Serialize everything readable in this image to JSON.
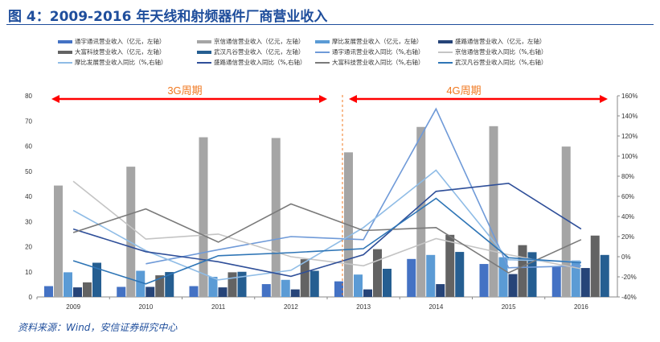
{
  "title": "图 4：2009-2016 年天线和射频器件厂商营业收入",
  "source": "资料来源：Wind，安信证券研究中心",
  "annotations": {
    "period_3g": "3G周期",
    "period_4g": "4G周期",
    "arrow_color": "#ff0000",
    "text_color": "#f07820"
  },
  "chart_data": {
    "type": "bar+line",
    "title": "2009-2016 年天线和射频器件厂商营业收入",
    "categories": [
      "2009",
      "2010",
      "2011",
      "2012",
      "2013",
      "2014",
      "2015",
      "2016"
    ],
    "left_axis": {
      "ylim": [
        0,
        80
      ],
      "ticks": [
        "0",
        "10",
        "20",
        "30",
        "40",
        "50",
        "60",
        "70",
        "80"
      ]
    },
    "right_axis": {
      "ylim": [
        -40,
        160
      ],
      "ticks": [
        "-40%",
        "-20%",
        "0%",
        "20%",
        "40%",
        "60%",
        "80%",
        "100%",
        "120%",
        "140%",
        "160%"
      ]
    },
    "grid": false,
    "legend_position": "top",
    "bar_series": [
      {
        "name": "通宇通讯营业收入（亿元，左轴）",
        "color": "#4472c4",
        "values": [
          4.3,
          4.0,
          4.3,
          5.1,
          6.2,
          15.1,
          13.1,
          12.3
        ]
      },
      {
        "name": "京信通信营业收入（亿元，左轴）",
        "color": "#a5a5a5",
        "values": [
          44.3,
          51.8,
          63.5,
          63.2,
          57.5,
          67.6,
          67.9,
          59.8
        ]
      },
      {
        "name": "摩比发展营业收入（亿元，左轴）",
        "color": "#5b9bd5",
        "values": [
          9.8,
          10.4,
          8.0,
          6.8,
          8.9,
          16.7,
          15.8,
          14.5
        ]
      },
      {
        "name": "盛路通信营业收入（亿元，左轴）",
        "color": "#264478",
        "values": [
          3.8,
          4.0,
          3.8,
          3.0,
          3.0,
          5.1,
          9.1,
          11.5
        ]
      },
      {
        "name": "大富科技营业收入（亿元，左轴）",
        "color": "#636363",
        "values": [
          5.8,
          8.6,
          9.8,
          15.0,
          19.0,
          24.7,
          20.6,
          24.4
        ]
      },
      {
        "name": "武汉凡谷营业收入（亿元，左轴）",
        "color": "#255e91",
        "values": [
          13.6,
          9.9,
          10.0,
          10.4,
          11.2,
          17.9,
          17.8,
          16.7
        ]
      }
    ],
    "line_series": [
      {
        "name": "通宇通讯营业收入同比（%,右轴）",
        "color": "#6f9ad8",
        "values": [
          null,
          -7,
          7,
          20,
          17,
          147,
          -11,
          -9
        ]
      },
      {
        "name": "京信通信营业收入同比（%,右轴）",
        "color": "#c4c4c4",
        "values": [
          75,
          17.5,
          22.5,
          0,
          -9,
          18,
          2,
          -12
        ]
      },
      {
        "name": "摩比发展营业收入同比（%,右轴）",
        "color": "#8fbce6",
        "values": [
          46,
          6,
          -23,
          -13.5,
          29,
          86,
          -3,
          -5
        ]
      },
      {
        "name": "盛路通信营业收入同比（%,右轴）",
        "color": "#2f4f99",
        "values": [
          27.5,
          5,
          -5,
          -19.5,
          2,
          65,
          73,
          27.5
        ]
      },
      {
        "name": "大富科技营业收入同比（%,右轴）",
        "color": "#7a7a7a",
        "values": [
          24,
          47.5,
          14.5,
          52.5,
          26,
          29,
          -16,
          17
        ]
      },
      {
        "name": "武汉凡谷营业收入同比（%,右轴）",
        "color": "#2e75b6",
        "values": [
          -4,
          -27,
          1,
          4,
          8,
          58,
          -1,
          -6
        ]
      }
    ]
  }
}
